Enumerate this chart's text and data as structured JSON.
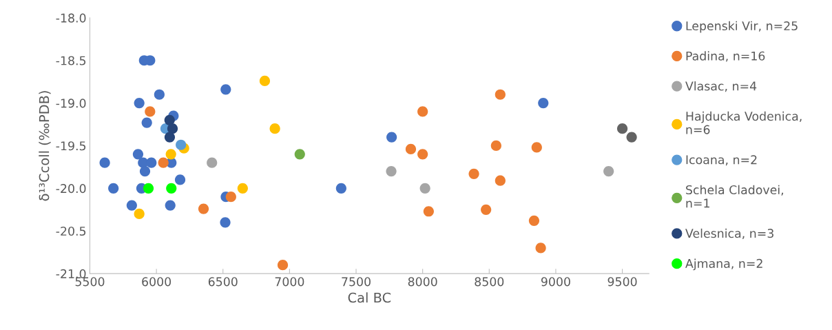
{
  "chart_data": {
    "type": "scatter",
    "xlabel": "Cal BC",
    "ylabel": "δ¹³Ccoll (‰PDB)",
    "xlim": [
      5500,
      9700
    ],
    "xticks": [
      5500,
      6000,
      6500,
      7000,
      7500,
      8000,
      8500,
      9000,
      9500
    ],
    "ylim": [
      -21,
      -18
    ],
    "yticks": [
      {
        "value": -21,
        "label": "-21.0"
      },
      {
        "value": -20.5,
        "label": "-20.5"
      },
      {
        "value": -20,
        "label": "-20.0"
      },
      {
        "value": -19.5,
        "label": "-19.5"
      },
      {
        "value": -19,
        "label": "-19.0"
      },
      {
        "value": -18.5,
        "label": "-18.5"
      },
      {
        "value": -18,
        "label": "-18.0"
      }
    ],
    "grid": false,
    "legend": "right",
    "marker": "circle",
    "series": [
      {
        "name": "Lepenski Vir, n=25",
        "color": "#4472c4",
        "x": [
          5908,
          5952,
          6521,
          6022,
          5871,
          6128,
          5928,
          5862,
          5612,
          5900,
          5962,
          6112,
          5914,
          6178,
          5677,
          5888,
          5815,
          6104,
          6522,
          6517,
          7767,
          7388,
          8906
        ],
        "values": [
          -18.5,
          -18.5,
          -18.84,
          -18.9,
          -19.0,
          -19.15,
          -19.23,
          -19.6,
          -19.7,
          -19.7,
          -19.7,
          -19.7,
          -19.8,
          -19.9,
          -20.0,
          -20.0,
          -20.2,
          -20.2,
          -20.1,
          -20.4,
          -19.4,
          -20.0,
          -19.0
        ]
      },
      {
        "name": "Padina, n=16",
        "color": "#ed7d31",
        "x": [
          5952,
          6052,
          6560,
          6354,
          6949,
          8000,
          7911,
          8000,
          8045,
          8583,
          8552,
          8857,
          8385,
          8583,
          8476,
          8837,
          8887
        ],
        "values": [
          -19.1,
          -19.7,
          -20.1,
          -20.24,
          -20.9,
          -19.1,
          -19.54,
          -19.6,
          -20.27,
          -18.9,
          -19.5,
          -19.52,
          -19.83,
          -19.91,
          -20.25,
          -20.38,
          -20.7
        ]
      },
      {
        "name": "Vlasac, n=4",
        "color": "#a5a5a5",
        "x": [
          6417,
          7764,
          8018,
          9397
        ],
        "values": [
          -19.7,
          -19.8,
          -20.0,
          -19.8
        ]
      },
      {
        "name": "Hajducka Vodenica, n=6",
        "color": "#ffc000",
        "x": [
          6814,
          6890,
          6648,
          6207,
          6109,
          5871
        ],
        "values": [
          -18.74,
          -19.3,
          -20.0,
          -19.53,
          -19.6,
          -20.3
        ]
      },
      {
        "name": "Icoana, n=2",
        "color": "#5b9bd5",
        "x": [
          6069,
          6184
        ],
        "values": [
          -19.3,
          -19.49
        ]
      },
      {
        "name": "Schela Cladovei, n=1",
        "color": "#70ad47",
        "x": [
          7077
        ],
        "values": [
          -19.6
        ]
      },
      {
        "name": "Velesnica, n=3",
        "color": "#264478",
        "x": [
          6099,
          6121,
          6100
        ],
        "values": [
          -19.2,
          -19.3,
          -19.4
        ]
      },
      {
        "name": "Ajmana, n=2",
        "color": "#00ff00",
        "x": [
          5940,
          6112
        ],
        "values": [
          -20.0,
          -20.0
        ]
      },
      {
        "color": "#636363",
        "x": [
          9500,
          9570
        ],
        "values": [
          -19.3,
          -19.4
        ]
      }
    ]
  }
}
